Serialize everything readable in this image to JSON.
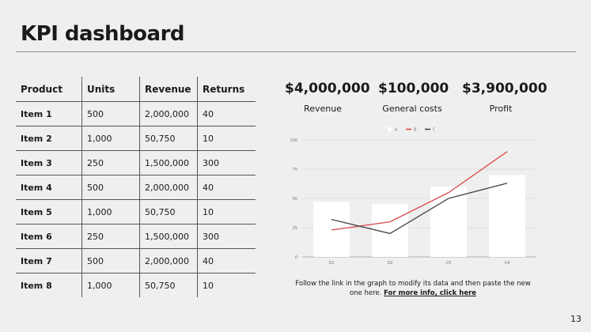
{
  "title": "KPI dashboard",
  "table": {
    "headers": [
      "Product",
      "Units",
      "Revenue",
      "Returns"
    ],
    "rows": [
      [
        "Item 1",
        "500",
        "2,000,000",
        "40"
      ],
      [
        "Item 2",
        "1,000",
        "50,750",
        "10"
      ],
      [
        "Item 3",
        "250",
        "1,500,000",
        "300"
      ],
      [
        "Item 4",
        "500",
        "2,000,000",
        "40"
      ],
      [
        "Item 5",
        "1,000",
        "50,750",
        "10"
      ],
      [
        "Item 6",
        "250",
        "1,500,000",
        "300"
      ],
      [
        "Item 7",
        "500",
        "2,000,000",
        "40"
      ],
      [
        "Item 8",
        "1,000",
        "50,750",
        "10"
      ]
    ]
  },
  "kpis": [
    {
      "value": "$4,000,000",
      "label": "Revenue"
    },
    {
      "value": "$100,000",
      "label": "General costs"
    },
    {
      "value": "$3,900,000",
      "label": "Profit"
    }
  ],
  "note": {
    "text": "Follow the link in the graph to modify its data and then paste the new one here.",
    "link": "For more info, click here"
  },
  "page_number": "13",
  "chart_data": {
    "type": "bar+line",
    "categories": [
      "Q1",
      "Q2",
      "Q3",
      "Q4"
    ],
    "ylim": [
      0,
      100
    ],
    "yticks": [
      0,
      25,
      50,
      75,
      100
    ],
    "series": [
      {
        "name": "A",
        "type": "bar",
        "color": "#ffffff",
        "values": [
          47,
          45,
          60,
          70
        ]
      },
      {
        "name": "B",
        "type": "line",
        "color": "#d94545",
        "values": [
          23,
          30,
          55,
          90
        ]
      },
      {
        "name": "C",
        "type": "line",
        "color": "#444444",
        "values": [
          32,
          20,
          50,
          63
        ]
      }
    ]
  }
}
